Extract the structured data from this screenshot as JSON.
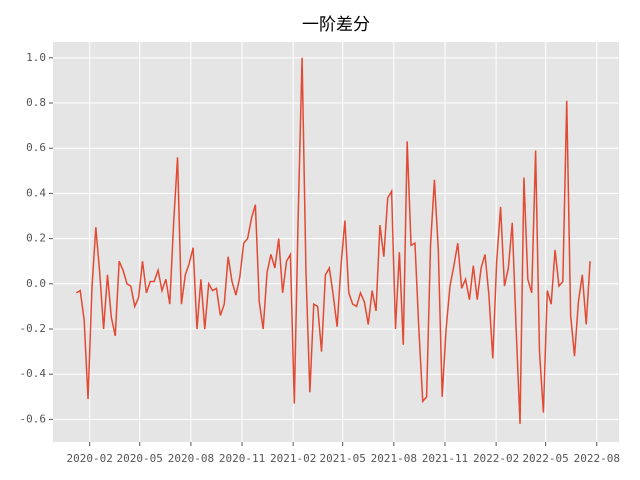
{
  "chart_data": {
    "type": "line",
    "title": "一阶差分",
    "x": [
      "2020-01-08",
      "2020-01-15",
      "2020-01-22",
      "2020-01-29",
      "2020-02-05",
      "2020-02-12",
      "2020-02-19",
      "2020-02-26",
      "2020-03-04",
      "2020-03-11",
      "2020-03-18",
      "2020-03-25",
      "2020-04-01",
      "2020-04-08",
      "2020-04-15",
      "2020-04-22",
      "2020-04-29",
      "2020-05-06",
      "2020-05-13",
      "2020-05-20",
      "2020-05-27",
      "2020-06-03",
      "2020-06-10",
      "2020-06-17",
      "2020-06-24",
      "2020-07-01",
      "2020-07-08",
      "2020-07-15",
      "2020-07-22",
      "2020-07-29",
      "2020-08-05",
      "2020-08-12",
      "2020-08-19",
      "2020-08-26",
      "2020-09-02",
      "2020-09-09",
      "2020-09-16",
      "2020-09-23",
      "2020-09-30",
      "2020-10-07",
      "2020-10-14",
      "2020-10-21",
      "2020-10-28",
      "2020-11-04",
      "2020-11-11",
      "2020-11-18",
      "2020-11-25",
      "2020-12-02",
      "2020-12-09",
      "2020-12-16",
      "2020-12-23",
      "2020-12-30",
      "2021-01-06",
      "2021-01-13",
      "2021-01-20",
      "2021-01-27",
      "2021-02-03",
      "2021-02-10",
      "2021-02-17",
      "2021-02-24",
      "2021-03-03",
      "2021-03-10",
      "2021-03-17",
      "2021-03-24",
      "2021-03-31",
      "2021-04-07",
      "2021-04-14",
      "2021-04-21",
      "2021-04-28",
      "2021-05-05",
      "2021-05-12",
      "2021-05-19",
      "2021-05-26",
      "2021-06-02",
      "2021-06-09",
      "2021-06-16",
      "2021-06-23",
      "2021-06-30",
      "2021-07-07",
      "2021-07-14",
      "2021-07-21",
      "2021-07-28",
      "2021-08-04",
      "2021-08-11",
      "2021-08-18",
      "2021-08-25",
      "2021-09-01",
      "2021-09-08",
      "2021-09-15",
      "2021-09-22",
      "2021-09-29",
      "2021-10-06",
      "2021-10-13",
      "2021-10-20",
      "2021-10-27",
      "2021-11-03",
      "2021-11-10",
      "2021-11-17",
      "2021-11-24",
      "2021-12-01",
      "2021-12-08",
      "2021-12-15",
      "2021-12-22",
      "2021-12-29",
      "2022-01-05",
      "2022-01-12",
      "2022-01-19",
      "2022-01-26",
      "2022-02-02",
      "2022-02-09",
      "2022-02-16",
      "2022-02-23",
      "2022-03-02",
      "2022-03-09",
      "2022-03-16",
      "2022-03-23",
      "2022-03-30",
      "2022-04-06",
      "2022-04-13",
      "2022-04-20",
      "2022-04-27",
      "2022-05-04",
      "2022-05-11",
      "2022-05-18",
      "2022-05-25",
      "2022-06-01",
      "2022-06-08",
      "2022-06-15",
      "2022-06-22",
      "2022-06-29",
      "2022-07-06",
      "2022-07-13",
      "2022-07-20"
    ],
    "series": [
      {
        "color": "#E24A33",
        "values": [
          -0.04,
          -0.03,
          -0.16,
          -0.51,
          -0.02,
          0.25,
          0.05,
          -0.2,
          0.04,
          -0.15,
          -0.23,
          0.1,
          0.06,
          0.0,
          -0.01,
          -0.1,
          -0.06,
          0.1,
          -0.04,
          0.01,
          0.01,
          0.06,
          -0.03,
          0.02,
          -0.09,
          0.27,
          0.56,
          -0.09,
          0.04,
          0.09,
          0.16,
          -0.2,
          0.02,
          -0.2,
          0.0,
          -0.03,
          -0.02,
          -0.14,
          -0.09,
          0.12,
          0.01,
          -0.05,
          0.03,
          0.18,
          0.2,
          0.29,
          0.35,
          -0.08,
          -0.2,
          0.05,
          0.13,
          0.07,
          0.2,
          -0.04,
          0.1,
          0.13,
          -0.53,
          0.3,
          1.0,
          0.05,
          -0.48,
          -0.09,
          -0.1,
          -0.3,
          0.04,
          0.07,
          -0.05,
          -0.19,
          0.08,
          0.28,
          -0.04,
          -0.09,
          -0.1,
          -0.04,
          -0.08,
          -0.18,
          -0.03,
          -0.12,
          0.26,
          0.12,
          0.38,
          0.41,
          -0.2,
          0.14,
          -0.27,
          0.63,
          0.17,
          0.18,
          -0.2,
          -0.52,
          -0.5,
          0.17,
          0.46,
          0.15,
          -0.5,
          -0.2,
          -0.01,
          0.08,
          0.18,
          -0.02,
          0.02,
          -0.07,
          0.08,
          -0.07,
          0.07,
          0.13,
          -0.05,
          -0.33,
          0.1,
          0.34,
          -0.01,
          0.07,
          0.27,
          -0.2,
          -0.62,
          0.47,
          0.02,
          -0.04,
          0.59,
          -0.3,
          -0.57,
          -0.03,
          -0.09,
          0.15,
          -0.01,
          0.01,
          0.81,
          -0.14,
          -0.32,
          -0.08,
          0.04,
          -0.18,
          0.1
        ]
      }
    ],
    "xlim": [
      "2019-11-27",
      "2022-09-10"
    ],
    "xticks": [
      {
        "value": "2020-02-01",
        "label": "2020-02"
      },
      {
        "value": "2020-05-01",
        "label": "2020-05"
      },
      {
        "value": "2020-08-01",
        "label": "2020-08"
      },
      {
        "value": "2020-11-01",
        "label": "2020-11"
      },
      {
        "value": "2021-02-01",
        "label": "2021-02"
      },
      {
        "value": "2021-05-01",
        "label": "2021-05"
      },
      {
        "value": "2021-08-01",
        "label": "2021-08"
      },
      {
        "value": "2021-11-01",
        "label": "2021-11"
      },
      {
        "value": "2022-02-01",
        "label": "2022-02"
      },
      {
        "value": "2022-05-01",
        "label": "2022-05"
      },
      {
        "value": "2022-08-01",
        "label": "2022-08"
      }
    ],
    "ylim": [
      -0.7,
      1.07
    ],
    "yticks": [
      -0.6,
      -0.4,
      -0.2,
      {
        "value": 0,
        "label": "0.0"
      },
      0.2,
      0.4,
      0.6,
      0.8,
      {
        "value": 1,
        "label": "1.0"
      }
    ],
    "grid": true
  }
}
